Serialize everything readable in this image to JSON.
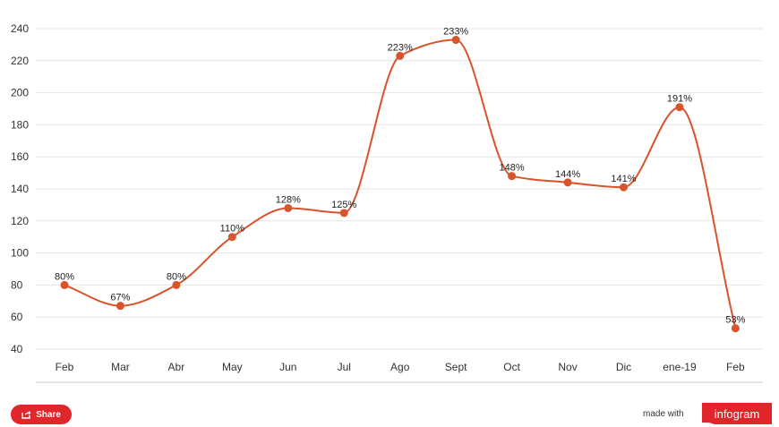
{
  "colors": {
    "line": "#d9532c",
    "grid": "#e5e5e5",
    "axis": "#cccccc",
    "accent": "#e0262b"
  },
  "chart_data": {
    "type": "line",
    "title": "",
    "xlabel": "",
    "ylabel": "",
    "categories": [
      "Feb",
      "Mar",
      "Abr",
      "May",
      "Jun",
      "Jul",
      "Ago",
      "Sept",
      "Oct",
      "Nov",
      "Dic",
      "ene-19",
      "Feb"
    ],
    "series": [
      {
        "values": [
          80,
          67,
          80,
          110,
          128,
          125,
          223,
          233,
          148,
          144,
          141,
          191,
          53
        ]
      }
    ],
    "data_labels": [
      "80%",
      "67%",
      "80%",
      "110%",
      "128%",
      "125%",
      "223%",
      "233%",
      "148%",
      "144%",
      "141%",
      "191%",
      "53%"
    ],
    "yticks": [
      40,
      60,
      80,
      100,
      120,
      140,
      160,
      180,
      200,
      220,
      240
    ],
    "ylim": [
      40,
      240
    ],
    "grid": true,
    "legend": "none"
  },
  "footer": {
    "share_label": "Share",
    "share_icon": "share-icon",
    "made_with": "made with",
    "brand": "infogram"
  }
}
